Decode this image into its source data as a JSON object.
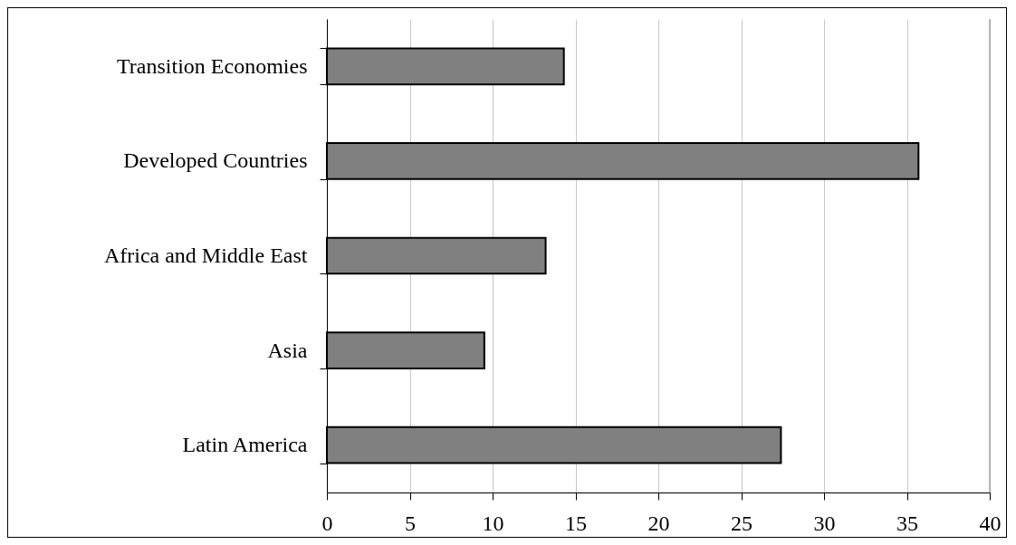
{
  "chart_data": {
    "type": "bar",
    "orientation": "horizontal",
    "categories": [
      "Transition Economies",
      "Developed Countries",
      "Africa and Middle East",
      "Asia",
      "Latin America"
    ],
    "values": [
      14.3,
      35.7,
      13.2,
      9.5,
      27.4
    ],
    "color": "#808080",
    "xlim": [
      0,
      40
    ],
    "xticks": [
      0,
      5,
      10,
      15,
      20,
      25,
      30,
      35,
      40
    ],
    "grid": "x"
  }
}
